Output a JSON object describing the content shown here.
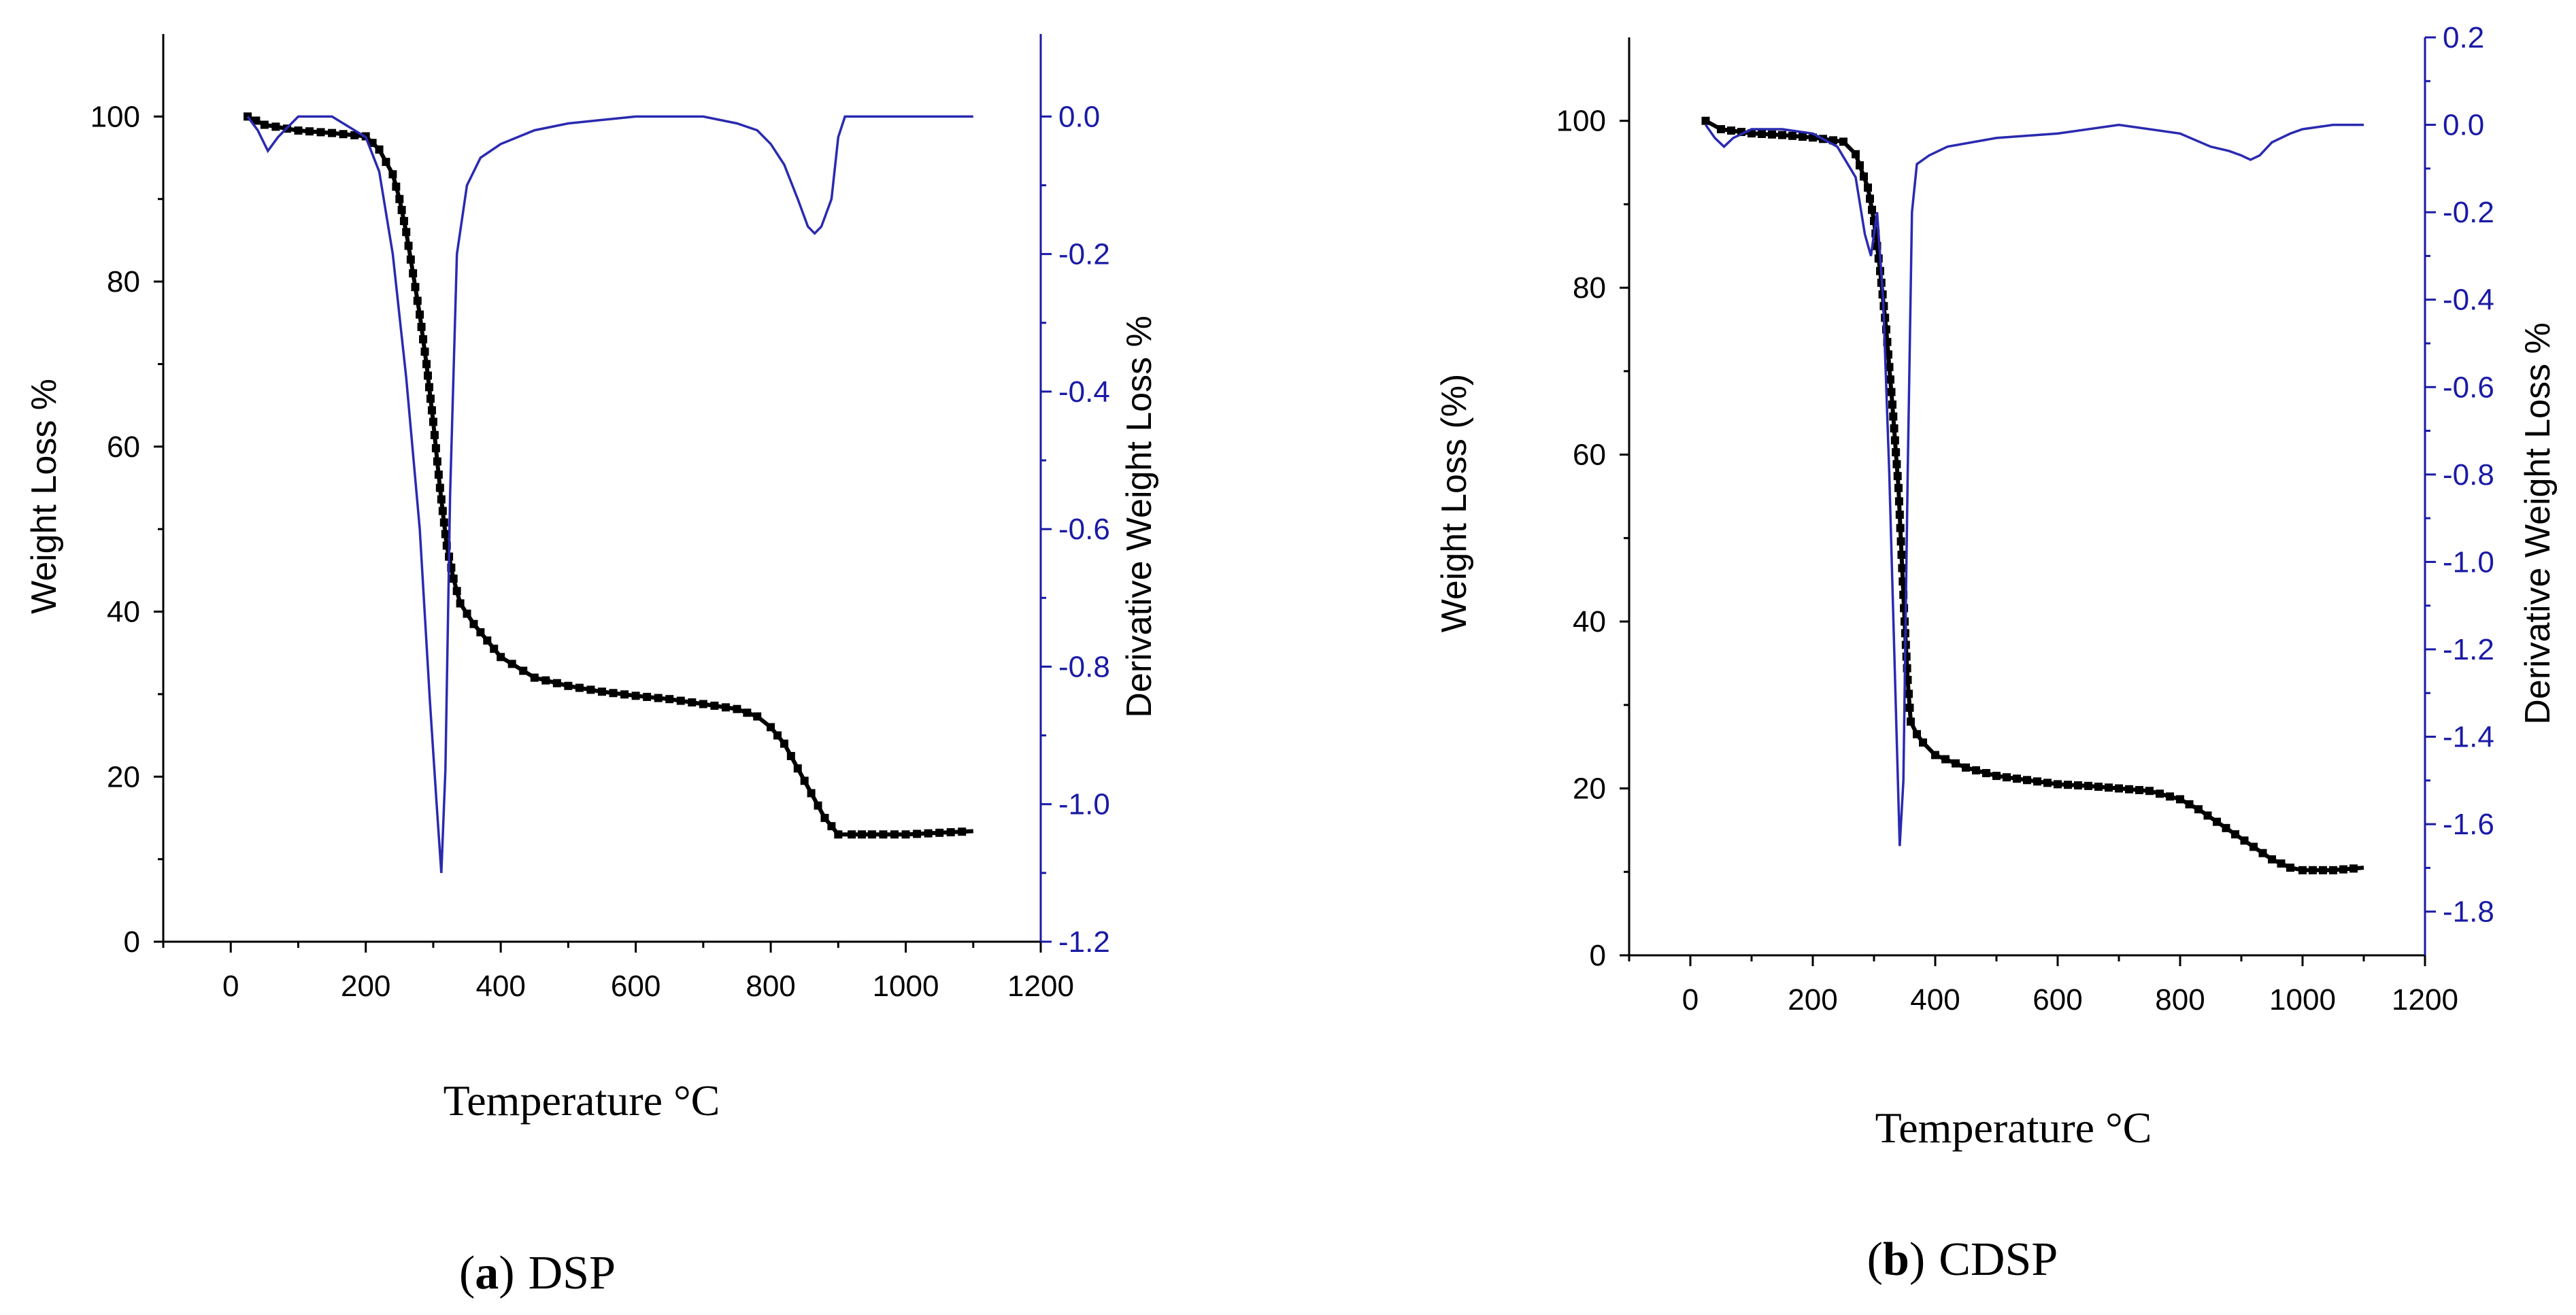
{
  "figure": {
    "panels": [
      {
        "caption_tag": "a",
        "caption_text": "DSP",
        "xlabel": "Temperature °C",
        "ylabel_left": "Weight Loss %",
        "ylabel_right": "Derivative Weight Loss %"
      },
      {
        "caption_tag": "b",
        "caption_text": "CDSP",
        "xlabel": "Temperature °C",
        "ylabel_left": "Weight Loss (%)",
        "ylabel_right": "Derivative Weight Loss %"
      }
    ]
  },
  "chart_data": [
    {
      "type": "line",
      "title": "(a) DSP",
      "xlabel": "Temperature °C",
      "ylabel": "Weight Loss %",
      "y2label": "Derivative Weight Loss %",
      "xlim": [
        -100,
        1200
      ],
      "ylim": [
        0,
        110
      ],
      "y2lim": [
        -1.2,
        0.12
      ],
      "xticks": [
        0,
        200,
        400,
        600,
        800,
        1000,
        1200
      ],
      "yticks": [
        0,
        20,
        40,
        60,
        80,
        100
      ],
      "y2ticks": [
        -1.2,
        -1.0,
        -0.8,
        -0.6,
        -0.4,
        -0.2,
        0.0
      ],
      "y2tick_labels": [
        "-1.2",
        "-1.0",
        "-0.8",
        "-0.6",
        "-0.4",
        "-0.2",
        "0.0"
      ],
      "series": [
        {
          "name": "Weight Loss",
          "axis": "left",
          "color": "#000000",
          "x": [
            25,
            50,
            100,
            150,
            200,
            220,
            240,
            250,
            260,
            270,
            280,
            290,
            300,
            310,
            320,
            330,
            340,
            360,
            380,
            400,
            450,
            500,
            550,
            600,
            650,
            700,
            750,
            780,
            800,
            820,
            840,
            860,
            880,
            900,
            920,
            950,
            1000,
            1050,
            1100
          ],
          "y": [
            100,
            99,
            98.3,
            98,
            97.6,
            96,
            93,
            90,
            86,
            81,
            76,
            70,
            63,
            55,
            48,
            44,
            41,
            38.5,
            36.5,
            34.5,
            32,
            31,
            30.3,
            29.8,
            29.4,
            28.8,
            28.2,
            27.3,
            26,
            24,
            21,
            18,
            15,
            13,
            13,
            13,
            13,
            13.2,
            13.4
          ]
        },
        {
          "name": "Derivative Weight Loss",
          "axis": "right",
          "color": "#2a2ab0",
          "x": [
            25,
            40,
            55,
            70,
            100,
            150,
            200,
            220,
            240,
            260,
            280,
            295,
            305,
            312,
            318,
            325,
            335,
            350,
            370,
            400,
            450,
            500,
            550,
            600,
            650,
            700,
            750,
            780,
            800,
            820,
            840,
            855,
            865,
            875,
            890,
            900,
            910,
            950,
            1000,
            1050,
            1100
          ],
          "y": [
            0.0,
            -0.02,
            -0.05,
            -0.03,
            0.0,
            0.0,
            -0.03,
            -0.08,
            -0.2,
            -0.38,
            -0.6,
            -0.85,
            -1.0,
            -1.1,
            -0.95,
            -0.55,
            -0.2,
            -0.1,
            -0.06,
            -0.04,
            -0.02,
            -0.01,
            -0.005,
            0.0,
            0.0,
            0.0,
            -0.01,
            -0.02,
            -0.04,
            -0.07,
            -0.12,
            -0.16,
            -0.17,
            -0.16,
            -0.12,
            -0.03,
            0.0,
            0.0,
            0.0,
            0.0,
            0.0
          ]
        }
      ]
    },
    {
      "type": "line",
      "title": "(b) CDSP",
      "xlabel": "Temperature °C",
      "ylabel": "Weight Loss (%)",
      "y2label": "Derivative Weight Loss %",
      "xlim": [
        -100,
        1200
      ],
      "ylim": [
        0,
        110
      ],
      "y2lim": [
        -1.9,
        0.2
      ],
      "xticks": [
        0,
        200,
        400,
        600,
        800,
        1000,
        1200
      ],
      "yticks": [
        0,
        20,
        40,
        60,
        80,
        100
      ],
      "y2ticks": [
        -1.8,
        -1.6,
        -1.4,
        -1.2,
        -1.0,
        -0.8,
        -0.6,
        -0.4,
        -0.2,
        0.0,
        0.2
      ],
      "y2tick_labels": [
        "-1.8",
        "-1.6",
        "-1.4",
        "-1.2",
        "-1.0",
        "-0.8",
        "-0.6",
        "-0.4",
        "-0.2",
        "0.0",
        "0.2"
      ],
      "series": [
        {
          "name": "Weight Loss",
          "axis": "left",
          "color": "#000000",
          "x": [
            25,
            50,
            100,
            150,
            200,
            250,
            270,
            290,
            300,
            310,
            320,
            330,
            340,
            345,
            350,
            355,
            360,
            370,
            380,
            400,
            450,
            500,
            550,
            600,
            650,
            700,
            750,
            800,
            830,
            860,
            890,
            920,
            950,
            980,
            1000,
            1050,
            1100
          ],
          "y": [
            100,
            99,
            98.5,
            98.3,
            98,
            97.5,
            96,
            92,
            88,
            82,
            75,
            66,
            56,
            48,
            40,
            33,
            28,
            26.5,
            25.5,
            24,
            22.5,
            21.5,
            21,
            20.5,
            20.3,
            20,
            19.7,
            18.7,
            17.5,
            16,
            14.5,
            13,
            11.5,
            10.5,
            10.2,
            10.2,
            10.5
          ]
        },
        {
          "name": "Derivative Weight Loss",
          "axis": "right",
          "color": "#2a2ab0",
          "x": [
            25,
            40,
            55,
            70,
            100,
            150,
            200,
            240,
            270,
            285,
            295,
            305,
            315,
            325,
            335,
            342,
            348,
            355,
            362,
            370,
            390,
            420,
            500,
            600,
            700,
            800,
            850,
            880,
            900,
            915,
            930,
            950,
            980,
            1000,
            1050,
            1100
          ],
          "y": [
            0.0,
            -0.03,
            -0.05,
            -0.03,
            -0.01,
            -0.01,
            -0.02,
            -0.05,
            -0.12,
            -0.25,
            -0.3,
            -0.2,
            -0.4,
            -0.8,
            -1.3,
            -1.65,
            -1.5,
            -0.8,
            -0.2,
            -0.09,
            -0.07,
            -0.05,
            -0.03,
            -0.02,
            0.0,
            -0.02,
            -0.05,
            -0.06,
            -0.07,
            -0.08,
            -0.07,
            -0.04,
            -0.02,
            -0.01,
            0.0,
            0.0
          ]
        }
      ]
    }
  ]
}
